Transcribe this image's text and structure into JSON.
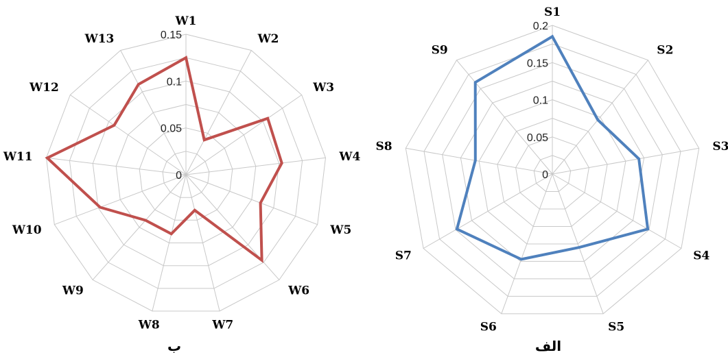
{
  "chart_data": [
    {
      "type": "radar",
      "caption": "ب",
      "categories": [
        "W1",
        "W2",
        "W3",
        "W4",
        "W5",
        "W6",
        "W7",
        "W8",
        "W9",
        "W10",
        "W11",
        "W12",
        "W13"
      ],
      "ticks": [
        "0",
        "0.05",
        "0.1",
        "0.15"
      ],
      "tick_values": [
        0,
        0.05,
        0.1,
        0.15
      ],
      "ylim": [
        0,
        0.15
      ],
      "series": [
        {
          "color": "#c0504d",
          "values": [
            0.125,
            0.042,
            0.106,
            0.103,
            0.085,
            0.122,
            0.039,
            0.065,
            0.065,
            0.098,
            0.149,
            0.093,
            0.109
          ]
        }
      ]
    },
    {
      "type": "radar",
      "caption": "الف",
      "categories": [
        "S1",
        "S2",
        "S3",
        "S4",
        "S5",
        "S6",
        "S7",
        "S8",
        "S9"
      ],
      "ticks": [
        "0",
        "0.05",
        "0.1",
        "0.15",
        "0.2"
      ],
      "tick_values": [
        0,
        0.05,
        0.1,
        0.15,
        0.2
      ],
      "ylim": [
        0,
        0.2
      ],
      "series": [
        {
          "color": "#4f81bd",
          "values": [
            0.185,
            0.095,
            0.118,
            0.148,
            0.105,
            0.122,
            0.148,
            0.105,
            0.161
          ]
        }
      ]
    }
  ]
}
